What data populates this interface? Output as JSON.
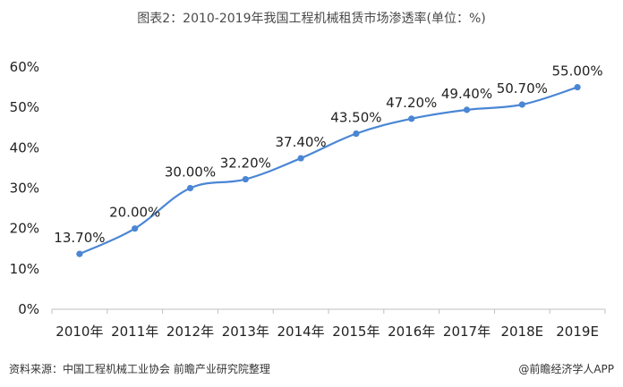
{
  "chart_data": {
    "type": "line",
    "title": "图表2：2010-2019年我国工程机械租赁市场渗透率(单位：%)",
    "xlabel": "",
    "ylabel": "",
    "categories": [
      "2010年",
      "2011年",
      "2012年",
      "2013年",
      "2014年",
      "2015年",
      "2016年",
      "2017年",
      "2018E",
      "2019E"
    ],
    "series": [
      {
        "values": [
          13.7,
          20.0,
          30.0,
          32.2,
          37.4,
          43.5,
          47.2,
          49.4,
          50.7,
          55.0
        ],
        "labels": [
          "13.70%",
          "20.00%",
          "30.00%",
          "32.20%",
          "37.40%",
          "43.50%",
          "47.20%",
          "49.40%",
          "50.70%",
          "55.00%"
        ],
        "color": "#4a86d4"
      }
    ],
    "ylim": [
      0,
      60
    ],
    "yticks": [
      "0%",
      "10%",
      "20%",
      "30%",
      "40%",
      "50%",
      "60%"
    ],
    "grid": false,
    "legend": "none"
  },
  "footer": {
    "source": "资料来源：中国工程机械工业协会 前瞻产业研究院整理",
    "credit": "@前瞻经济学人APP"
  }
}
